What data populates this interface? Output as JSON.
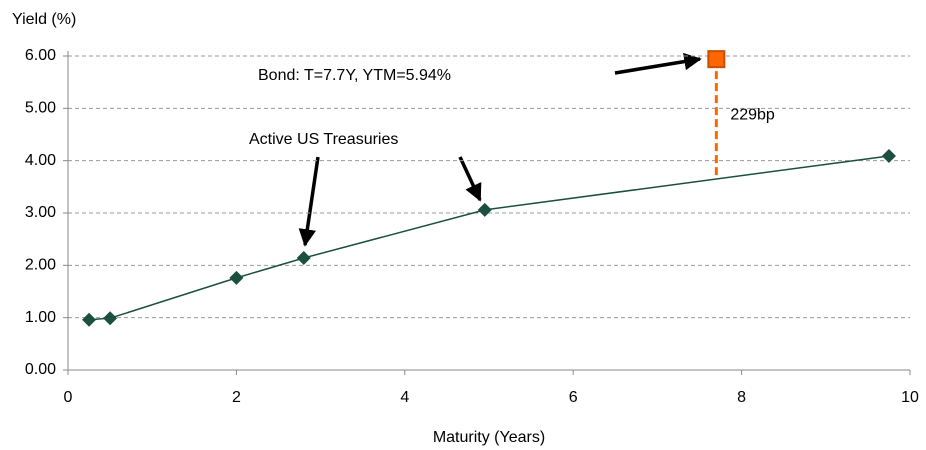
{
  "chart_data": {
    "type": "scatter",
    "ylabel": "Yield (%)",
    "xlabel": "Maturity (Years)",
    "xlim": [
      0,
      10
    ],
    "xticks": [
      0,
      2,
      4,
      6,
      8,
      10
    ],
    "ylim": [
      0,
      6
    ],
    "yticks": [
      {
        "value": 0,
        "label": "0.00"
      },
      {
        "value": 1,
        "label": "1.00"
      },
      {
        "value": 2,
        "label": "2.00"
      },
      {
        "value": 3,
        "label": "3.00"
      },
      {
        "value": 4,
        "label": "4.00"
      },
      {
        "value": 5,
        "label": "5.00"
      },
      {
        "value": 6,
        "label": "6.00"
      }
    ],
    "grid": true,
    "series": [
      {
        "color": "#1b4f3f",
        "line": true,
        "marker": "diamond",
        "x": [
          0.25,
          0.5,
          2,
          2.8,
          4.95,
          9.75
        ],
        "values": [
          0.96,
          0.99,
          1.76,
          2.14,
          3.06,
          4.09
        ]
      },
      {
        "color": "#ff6600",
        "line": false,
        "marker": "square",
        "x": [
          7.7
        ],
        "values": [
          5.94
        ]
      }
    ],
    "spread": {
      "value": 2.29,
      "label": "229bp",
      "color": "#ff6600"
    },
    "annotations": [
      "Bond: T=7.7Y, YTM=5.94%",
      "Active US Treasuries"
    ]
  }
}
